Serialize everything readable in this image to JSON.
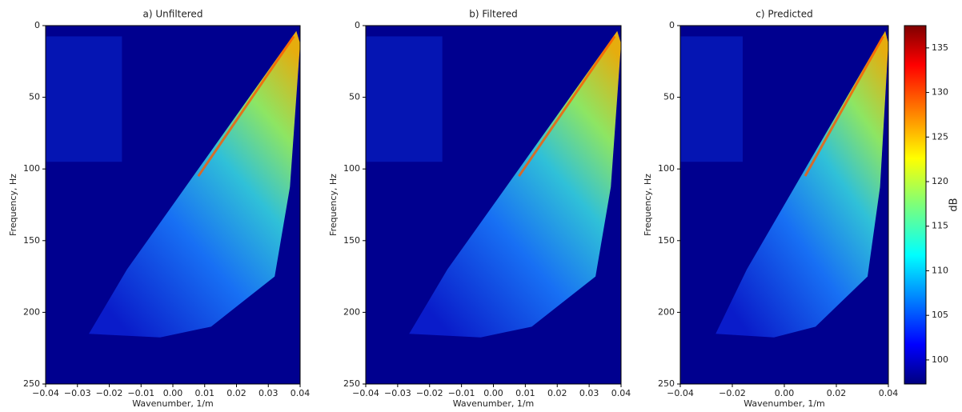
{
  "chart_data": [
    {
      "type": "heatmap",
      "title": "a) Unfiltered",
      "xlabel": "Wavenumber, 1/m",
      "ylabel": "Frequency, Hz",
      "xlim": [
        -0.04,
        0.04
      ],
      "ylim": [
        250,
        0
      ],
      "xticks": [
        {
          "value": -0.04,
          "label": "−0.04"
        },
        {
          "value": -0.03,
          "label": "−0.03"
        },
        {
          "value": -0.02,
          "label": "−0.02"
        },
        {
          "value": -0.01,
          "label": "−0.01"
        },
        {
          "value": 0,
          "label": "0.00"
        },
        0.01,
        0.02,
        0.03,
        0.04
      ],
      "yticks": [
        0,
        50,
        100,
        150,
        200,
        250
      ]
    },
    {
      "type": "heatmap",
      "title": "b) Filtered",
      "xlabel": "Wavenumber, 1/m",
      "ylabel": "Frequency, Hz",
      "xlim": [
        -0.04,
        0.04
      ],
      "ylim": [
        250,
        0
      ],
      "xticks": [
        {
          "value": -0.04,
          "label": "−0.04"
        },
        {
          "value": -0.03,
          "label": "−0.03"
        },
        {
          "value": -0.02,
          "label": "−0.02"
        },
        {
          "value": -0.01,
          "label": "−0.01"
        },
        {
          "value": 0,
          "label": "0.00"
        },
        0.01,
        0.02,
        0.03,
        0.04
      ],
      "yticks": [
        0,
        50,
        100,
        150,
        200,
        250
      ]
    },
    {
      "type": "heatmap",
      "title": "c) Predicted",
      "xlabel": "Wavenumber, 1/m",
      "ylabel": "Frequency, Hz",
      "xlim": [
        -0.04,
        0.04
      ],
      "ylim": [
        250,
        0
      ],
      "xticks": [
        {
          "value": -0.04,
          "label": "−0.04"
        },
        {
          "value": -0.02,
          "label": "−0.02"
        },
        {
          "value": 0,
          "label": "0.00"
        },
        0.02,
        0.04
      ],
      "yticks": [
        0,
        50,
        100,
        150,
        200,
        250
      ]
    },
    {
      "type": "colorbar",
      "label": "dB",
      "colormap": "jet",
      "ylim": [
        97.3,
        137.5
      ],
      "yticks": [
        100,
        105,
        110,
        115,
        120,
        125,
        130,
        135
      ]
    }
  ]
}
